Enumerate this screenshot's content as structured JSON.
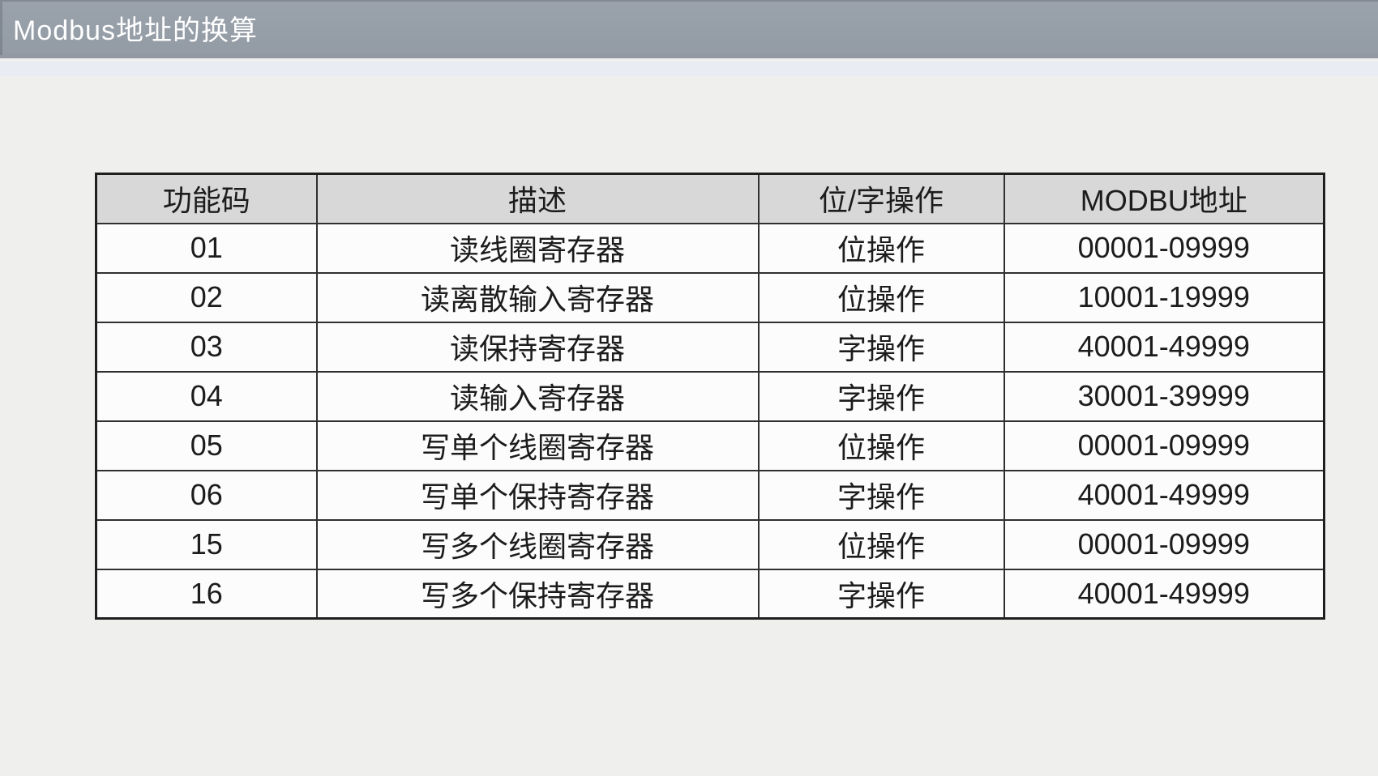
{
  "title_bar": {
    "title": "Modbus地址的换算"
  },
  "table": {
    "headers": {
      "code": "功能码",
      "desc": "描述",
      "op": "位/字操作",
      "addr": "MODBU地址"
    },
    "rows": [
      {
        "code": "01",
        "desc": "读线圈寄存器",
        "op": "位操作",
        "addr": "00001-09999"
      },
      {
        "code": "02",
        "desc": "读离散输入寄存器",
        "op": "位操作",
        "addr": "10001-19999"
      },
      {
        "code": "03",
        "desc": "读保持寄存器",
        "op": "字操作",
        "addr": "40001-49999"
      },
      {
        "code": "04",
        "desc": "读输入寄存器",
        "op": "字操作",
        "addr": "30001-39999"
      },
      {
        "code": "05",
        "desc": "写单个线圈寄存器",
        "op": "位操作",
        "addr": "00001-09999"
      },
      {
        "code": "06",
        "desc": "写单个保持寄存器",
        "op": "字操作",
        "addr": "40001-49999"
      },
      {
        "code": "15",
        "desc": "写多个线圈寄存器",
        "op": "位操作",
        "addr": "00001-09999"
      },
      {
        "code": "16",
        "desc": "写多个保持寄存器",
        "op": "字操作",
        "addr": "40001-49999"
      }
    ]
  },
  "colors": {
    "title_bar_bg": "#97a0aa",
    "title_text": "#ffffff",
    "page_bg": "#eff0ee",
    "under_title_strip": "#e9ecf2",
    "table_header_bg": "#d8d8d8",
    "table_row_bg": "#fcfcfc",
    "table_border": "#303030",
    "table_text": "#1c1c1c"
  }
}
